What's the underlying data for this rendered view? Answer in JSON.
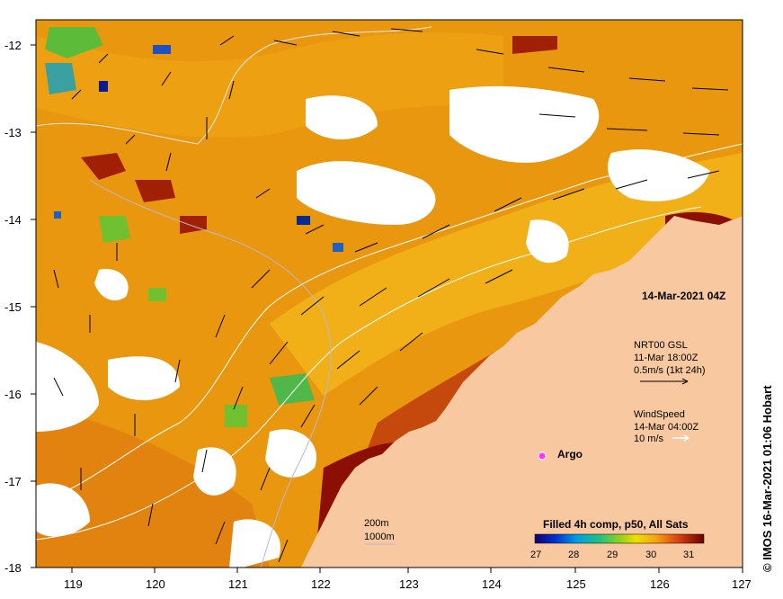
{
  "map": {
    "date_label": "14-Mar-2021 04Z",
    "credit": "© IMOS 16-Mar-2021 01:06 Hobart",
    "lon_ticks": [
      "119",
      "120",
      "121",
      "122",
      "123",
      "124",
      "125",
      "126",
      "127"
    ],
    "lat_ticks": [
      "-12",
      "-13",
      "-14",
      "-15",
      "-16",
      "-17",
      "-18"
    ],
    "current_legend": {
      "line1": "NRT00 GSL",
      "line2": "11-Mar 18:00Z",
      "line3": "0.5m/s (1kt 24h)"
    },
    "wind_legend": {
      "line1": "WindSpeed",
      "line2": "14-Mar 04:00Z",
      "line3": "10 m/s"
    },
    "argo_label": "Argo",
    "bathymetry": {
      "contour1": "200m",
      "contour2": "1000m"
    },
    "colorbar": {
      "title": "Filled 4h comp, p50, All Sats",
      "ticks": [
        "27",
        "28",
        "29",
        "30",
        "31"
      ]
    },
    "colors": {
      "land": "#f8c9a0",
      "sst_warm": "#e8920e",
      "sst_hot": "#8b0f05",
      "argo": "#ff33ff"
    }
  }
}
